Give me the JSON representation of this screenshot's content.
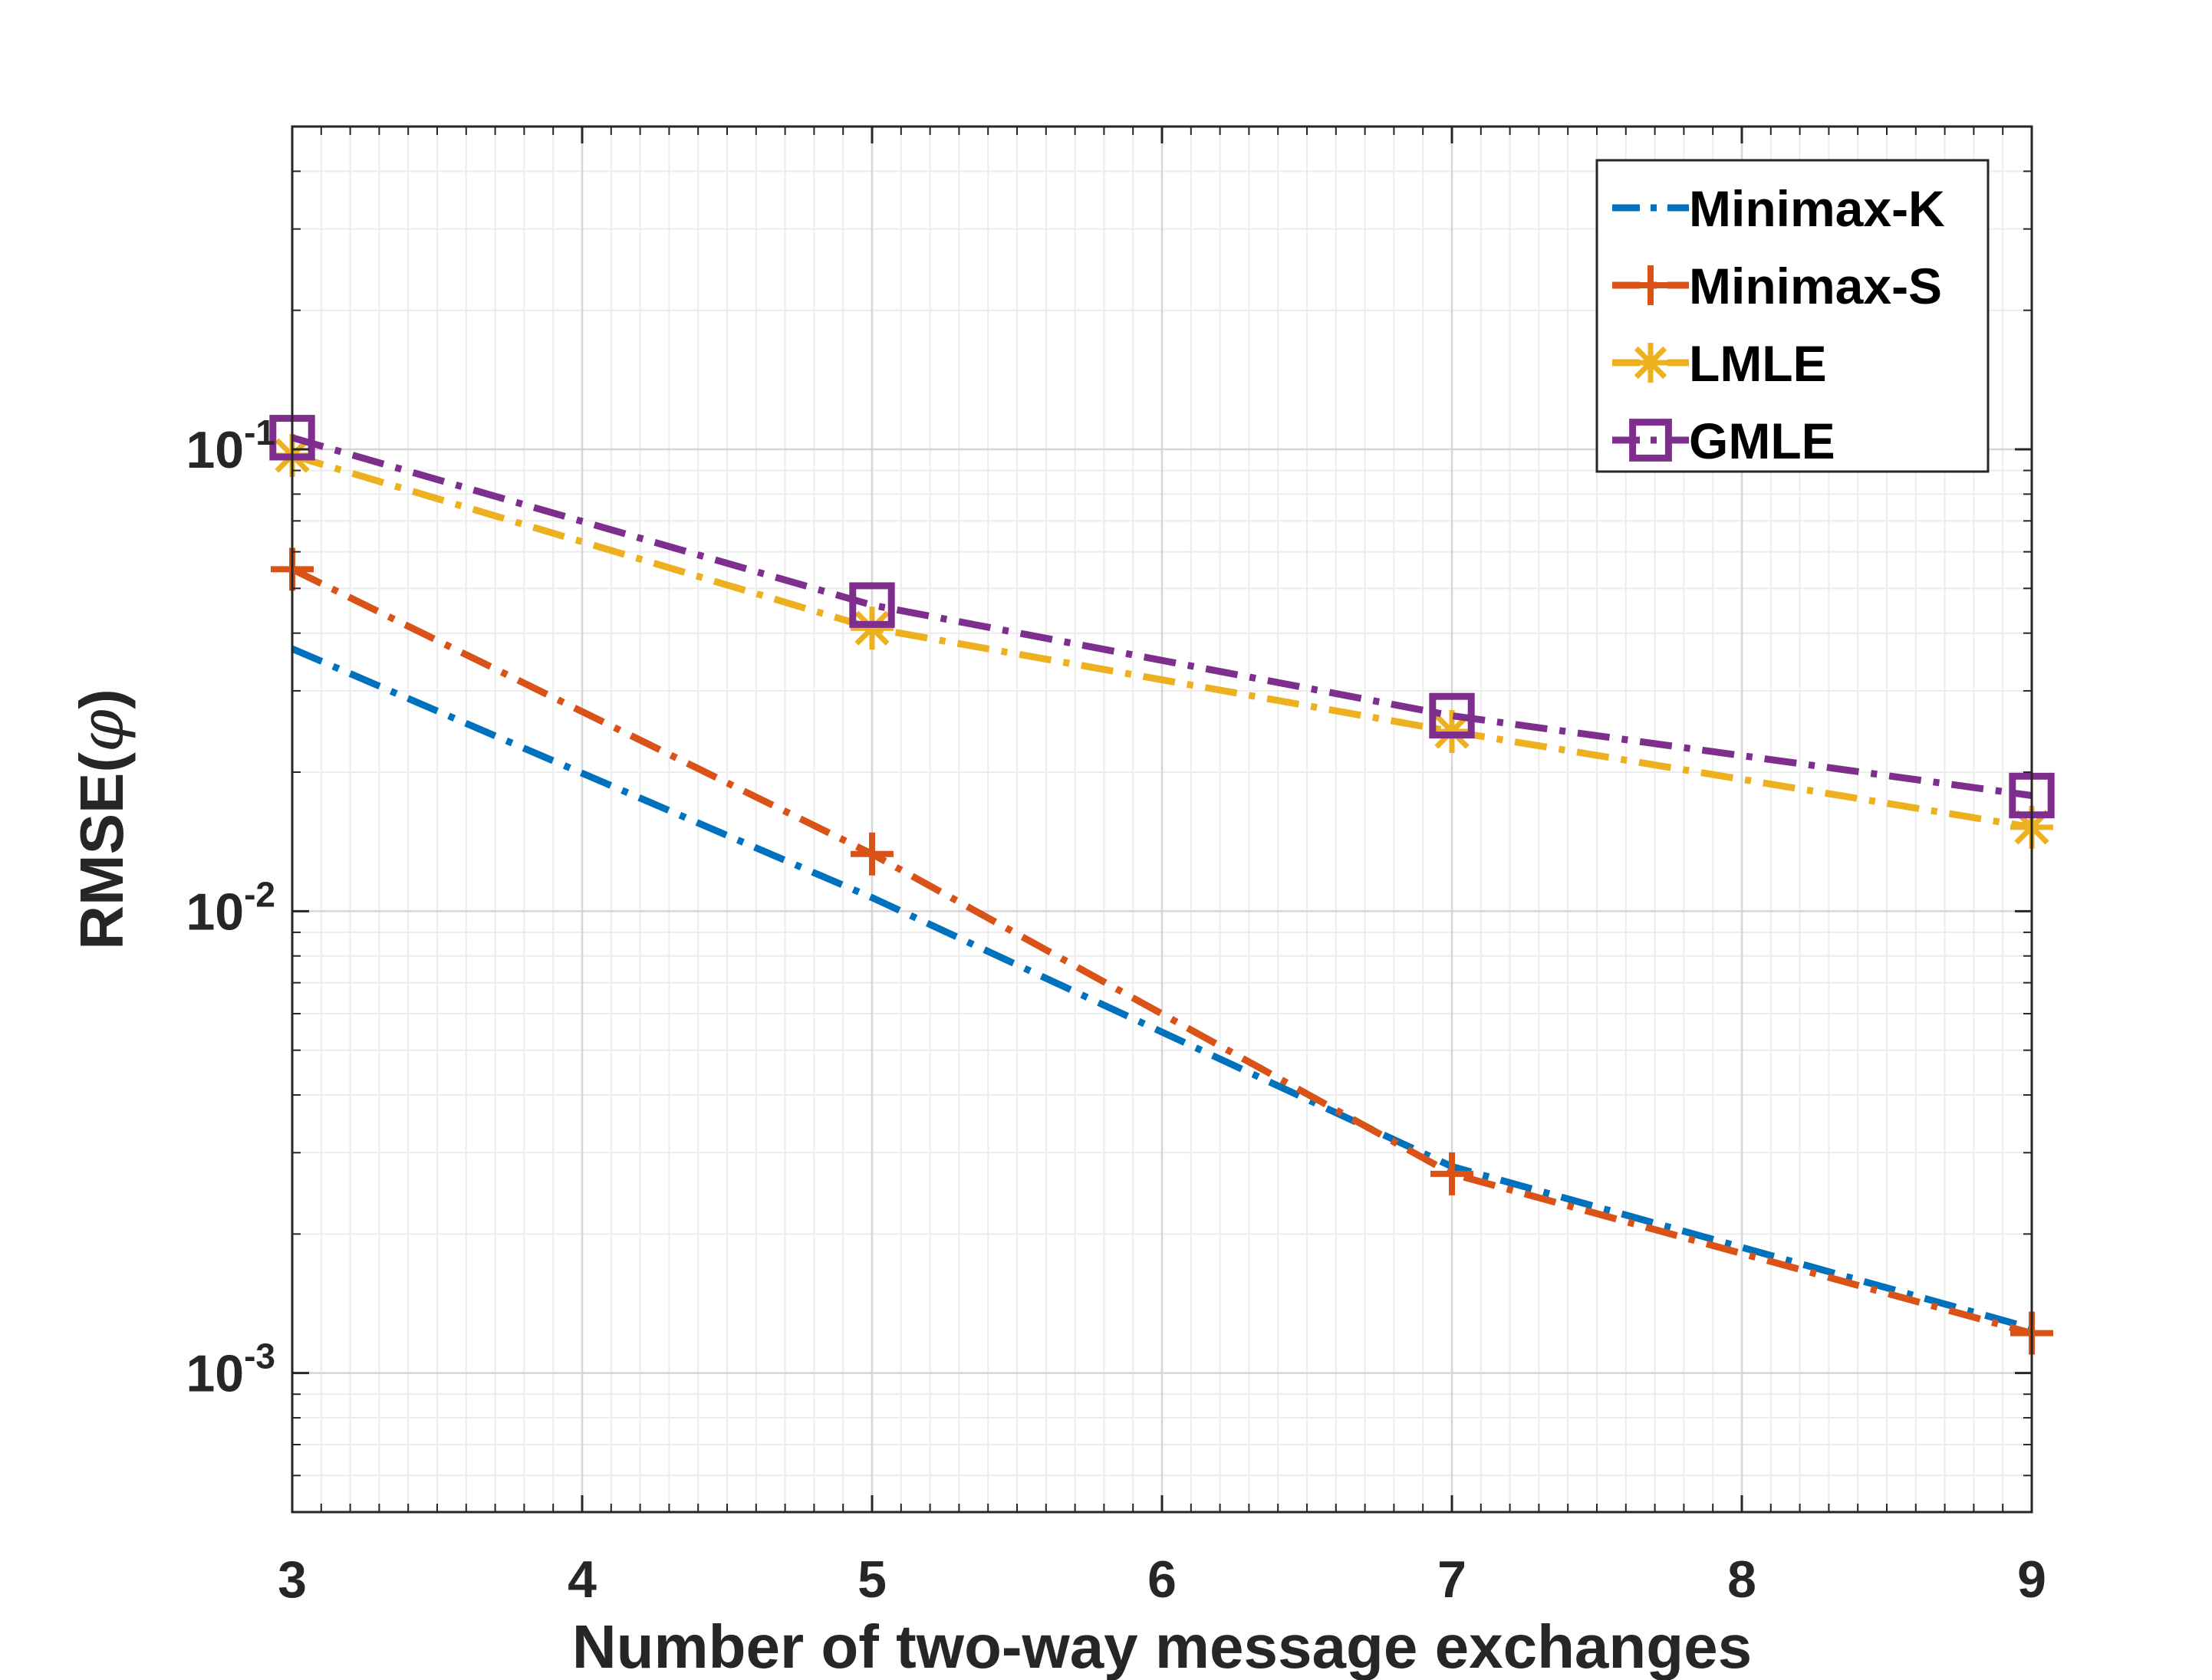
{
  "chart_data": {
    "type": "line",
    "xlabel": "Number of two-way message exchanges",
    "ylabel_prefix": "RMSE(",
    "ylabel_symbol": "φ",
    "ylabel_suffix": ")",
    "x_scale": "linear",
    "y_scale": "log",
    "xlim": [
      3,
      9
    ],
    "ylim": [
      0.0005,
      0.5
    ],
    "x_ticks": [
      "3",
      "4",
      "5",
      "6",
      "7",
      "8",
      "9"
    ],
    "y_ticks": [
      {
        "value": 0.1,
        "base": "10",
        "exp": "-1"
      },
      {
        "value": 0.01,
        "base": "10",
        "exp": "-2"
      },
      {
        "value": 0.001,
        "base": "10",
        "exp": "-3"
      }
    ],
    "grid": "major and minor",
    "legend_position": "top-right",
    "x": [
      3,
      5,
      7,
      9
    ],
    "series": [
      {
        "name": "Minimax-K",
        "values": [
          0.037,
          0.0107,
          0.0028,
          0.00125
        ],
        "color": "#0072BD",
        "marker": "none",
        "dash": "dashdot"
      },
      {
        "name": "Minimax-S",
        "values": [
          0.055,
          0.0133,
          0.0027,
          0.00122
        ],
        "color": "#D95319",
        "marker": "plus",
        "dash": "dashdot"
      },
      {
        "name": "LMLE",
        "values": [
          0.097,
          0.041,
          0.0245,
          0.0152
        ],
        "color": "#EDB120",
        "marker": "asterisk",
        "dash": "dashdot"
      },
      {
        "name": "GMLE",
        "values": [
          0.106,
          0.046,
          0.0265,
          0.0178
        ],
        "color": "#7E2F8E",
        "marker": "square",
        "dash": "dashdot"
      }
    ]
  }
}
